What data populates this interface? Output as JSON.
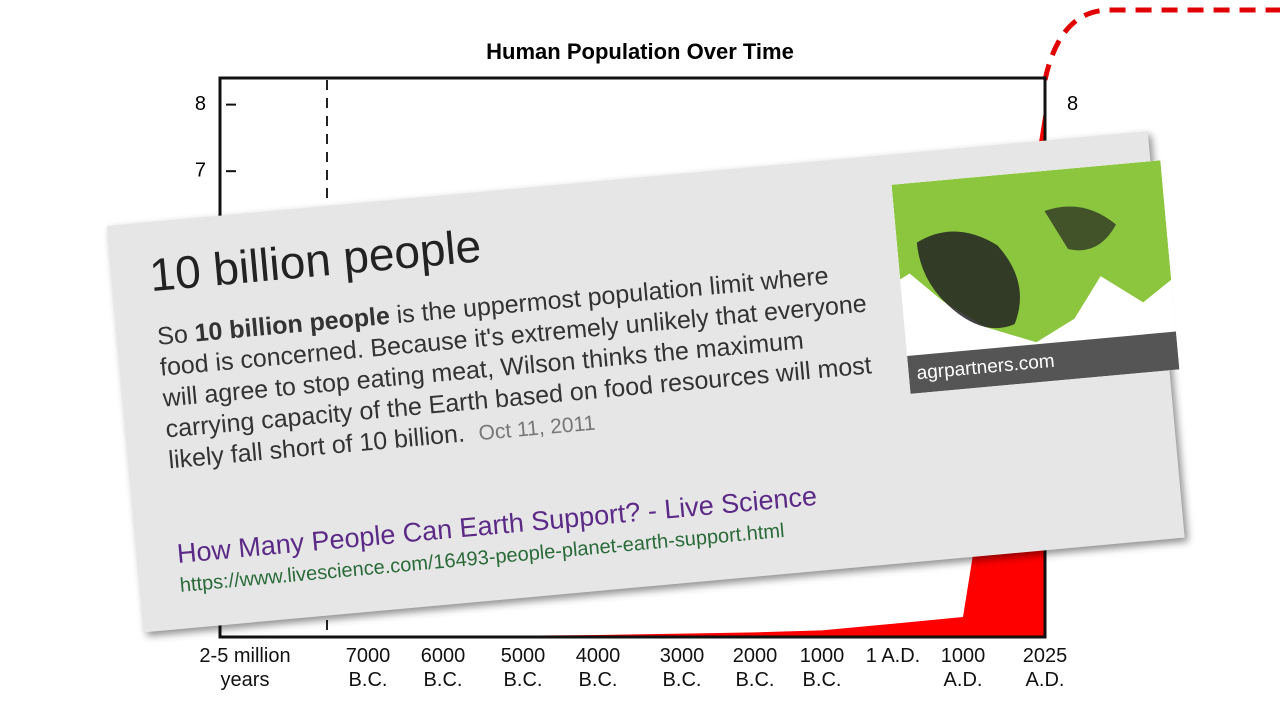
{
  "chart_data": {
    "type": "area",
    "title": "Human Population Over Time",
    "categories": [
      "2-5 million years",
      "7000 B.C.",
      "6000 B.C.",
      "5000 B.C.",
      "4000 B.C.",
      "3000 B.C.",
      "2000 B.C.",
      "1000 B.C.",
      "1 A.D.",
      "1000 A.D.",
      "2025 A.D."
    ],
    "values": [
      0.01,
      0.01,
      0.01,
      0.02,
      0.03,
      0.05,
      0.07,
      0.1,
      0.2,
      0.3,
      8
    ],
    "color": "#ff0000",
    "ylim": [
      0,
      8.4
    ],
    "yticks": [
      7,
      8
    ],
    "y2lim": [
      0,
      8.4
    ],
    "y2ticks": [
      8
    ]
  },
  "card": {
    "heading": "10 billion people",
    "snippet_prefix": "So",
    "snippet_bold": "10 billion people",
    "snippet_rest": "is the uppermost population limit where food is concerned. Because it's extremely unlikely that everyone will agree to stop eating meat, Wilson thinks the maximum carrying capacity of the Earth based on food resources will most likely fall short of 10 billion.",
    "date": "Oct 11, 2011",
    "link_title": "How Many People Can Earth Support? - Live Science",
    "url": "https://www.livescience.com/16493-people-planet-earth-support.html",
    "image_source": "agrpartners.com"
  }
}
